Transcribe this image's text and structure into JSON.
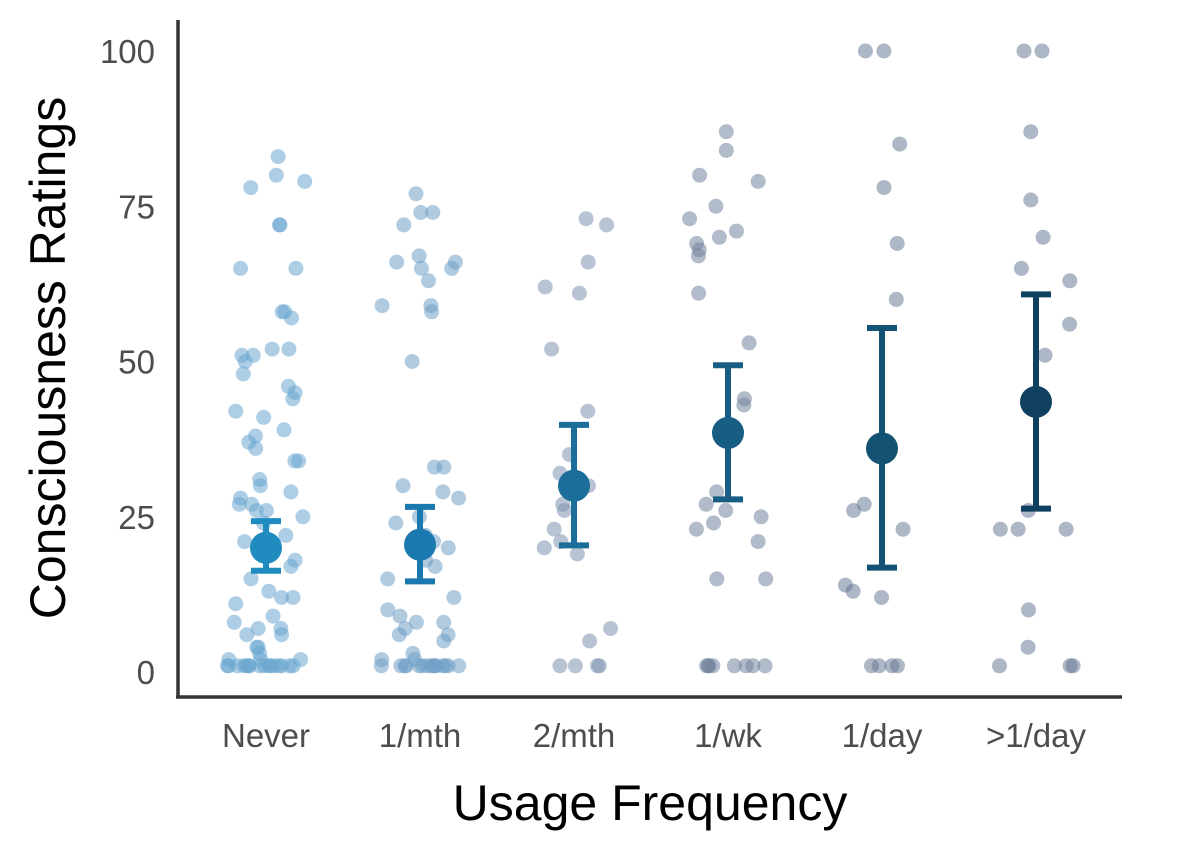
{
  "chart_data": {
    "type": "scatter",
    "title": "",
    "xlabel": "Usage Frequency",
    "ylabel": "Consciousness Ratings",
    "categories": [
      "Never",
      "1/mth",
      "2/mth",
      "1/wk",
      "1/day",
      ">1/day"
    ],
    "yticks": [
      0,
      25,
      50,
      75,
      100
    ],
    "ylim": [
      -3,
      105
    ],
    "grid": false,
    "legend": "none",
    "summary": {
      "means": [
        20,
        20.5,
        30,
        38.5,
        36,
        43.5
      ],
      "ci_low": [
        16.3,
        14.6,
        20.4,
        27.8,
        16.8,
        26.3
      ],
      "ci_high": [
        24.3,
        26.6,
        39.8,
        49.4,
        55.4,
        60.8
      ],
      "colors": [
        "#1f8bbf",
        "#1a7ab0",
        "#1b6d9a",
        "#185d84",
        "#145273",
        "#0f4060"
      ]
    },
    "points": [
      {
        "category": "Never",
        "y": [
          83,
          78,
          80,
          79,
          72,
          72,
          65,
          65,
          58,
          57,
          58,
          51,
          52,
          51,
          52,
          50,
          48,
          46,
          45,
          44,
          42,
          41,
          39,
          38,
          37,
          36,
          34,
          34,
          31,
          30,
          29,
          28,
          27,
          27,
          26,
          26,
          25,
          24,
          22,
          21,
          20,
          18,
          17,
          15,
          13,
          12,
          12,
          11,
          9,
          8,
          7,
          7,
          6,
          6,
          4,
          4,
          3,
          2,
          2,
          2,
          1,
          1,
          1,
          1,
          1,
          1,
          1,
          1,
          1,
          1,
          1,
          1,
          1,
          1,
          1,
          1
        ]
      },
      {
        "category": "1/mth",
        "y": [
          77,
          74,
          74,
          72,
          67,
          66,
          66,
          65,
          65,
          63,
          59,
          59,
          58,
          50,
          33,
          33,
          30,
          29,
          28,
          25,
          24,
          22,
          21,
          20,
          18,
          17,
          15,
          12,
          10,
          9,
          8,
          8,
          7,
          6,
          6,
          5,
          3,
          2,
          2,
          1,
          1,
          1,
          1,
          1,
          1,
          1,
          1,
          1,
          1,
          1,
          1,
          1,
          1,
          1
        ]
      },
      {
        "category": "2/mth",
        "y": [
          73,
          72,
          66,
          62,
          61,
          52,
          42,
          35,
          32,
          30,
          27,
          26,
          23,
          21,
          20,
          19,
          7,
          5,
          1,
          1,
          1,
          1
        ]
      },
      {
        "category": "1/wk",
        "y": [
          87,
          84,
          80,
          79,
          75,
          73,
          71,
          70,
          69,
          68,
          67,
          61,
          53,
          44,
          43,
          29,
          27,
          26,
          25,
          24,
          23,
          21,
          15,
          15,
          1,
          1,
          1,
          1,
          1,
          1,
          1,
          1
        ]
      },
      {
        "category": "1/day",
        "y": [
          100,
          100,
          85,
          78,
          69,
          60,
          27,
          26,
          23,
          14,
          13,
          12,
          1,
          1,
          1,
          1
        ]
      },
      {
        "category": ">1/day",
        "y": [
          100,
          100,
          87,
          76,
          70,
          65,
          63,
          56,
          51,
          26,
          23,
          23,
          23,
          10,
          4,
          1,
          1,
          1
        ]
      }
    ]
  }
}
